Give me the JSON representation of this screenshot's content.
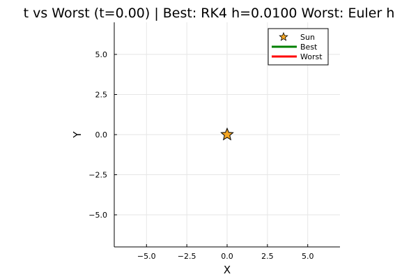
{
  "chart_data": {
    "type": "scatter",
    "title": "t vs Worst  (t=0.00)  |  Best: RK4 h=0.0100   Worst: Euler h",
    "xlabel": "X",
    "ylabel": "Y",
    "xlim": [
      -7,
      7
    ],
    "ylim": [
      -7,
      7
    ],
    "xticks": [
      -5.0,
      -2.5,
      0.0,
      2.5,
      5.0
    ],
    "yticks": [
      -5.0,
      -2.5,
      0.0,
      2.5,
      5.0
    ],
    "xtick_labels": [
      "−5.0",
      "−2.5",
      "0.0",
      "2.5",
      "5.0"
    ],
    "ytick_labels": [
      "−5.0",
      "−2.5",
      "0.0",
      "2.5",
      "5.0"
    ],
    "grid": true,
    "legend_position": "top-right",
    "series": [
      {
        "name": "Sun",
        "kind": "marker",
        "marker": "star",
        "color": "#f5a623",
        "points": [
          {
            "x": 0.0,
            "y": 0.0
          }
        ]
      },
      {
        "name": "Best",
        "kind": "line",
        "color": "#008000",
        "points": []
      },
      {
        "name": "Worst",
        "kind": "line",
        "color": "#ff0000",
        "points": []
      }
    ]
  }
}
